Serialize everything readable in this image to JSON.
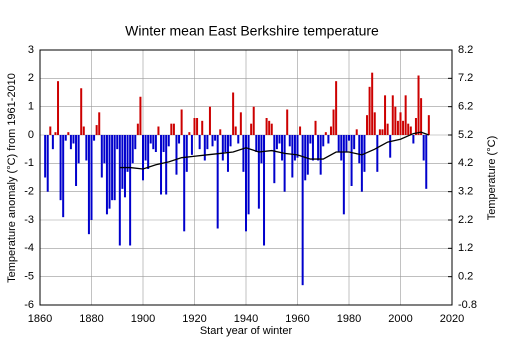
{
  "chart_data": {
    "type": "bar",
    "title": "Winter mean East Berkshire temperature",
    "xlabel": "Start year of winter",
    "ylabel": "Temperature anomaly (°C) from 1961-2010",
    "y2label": "Temperature (°C)",
    "x": [
      1862,
      1863,
      1864,
      1865,
      1866,
      1867,
      1868,
      1869,
      1870,
      1871,
      1872,
      1873,
      1874,
      1875,
      1876,
      1877,
      1878,
      1879,
      1880,
      1881,
      1882,
      1883,
      1884,
      1885,
      1886,
      1887,
      1888,
      1889,
      1890,
      1891,
      1892,
      1893,
      1894,
      1895,
      1896,
      1897,
      1898,
      1899,
      1900,
      1901,
      1902,
      1903,
      1904,
      1905,
      1906,
      1907,
      1908,
      1909,
      1910,
      1911,
      1912,
      1913,
      1914,
      1915,
      1916,
      1917,
      1918,
      1919,
      1920,
      1921,
      1922,
      1923,
      1924,
      1925,
      1926,
      1927,
      1928,
      1929,
      1930,
      1931,
      1932,
      1933,
      1934,
      1935,
      1936,
      1937,
      1938,
      1939,
      1940,
      1941,
      1942,
      1943,
      1944,
      1945,
      1946,
      1947,
      1948,
      1949,
      1950,
      1951,
      1952,
      1953,
      1954,
      1955,
      1956,
      1957,
      1958,
      1959,
      1960,
      1961,
      1962,
      1963,
      1964,
      1965,
      1966,
      1967,
      1968,
      1969,
      1970,
      1971,
      1972,
      1973,
      1974,
      1975,
      1976,
      1977,
      1978,
      1979,
      1980,
      1981,
      1982,
      1983,
      1984,
      1985,
      1986,
      1987,
      1988,
      1989,
      1990,
      1991,
      1992,
      1993,
      1994,
      1995,
      1996,
      1997,
      1998,
      1999,
      2000,
      2001,
      2002,
      2003,
      2004,
      2005,
      2006,
      2007,
      2008,
      2009,
      2010,
      2011
    ],
    "values": [
      -1.5,
      -2.0,
      0.3,
      -0.5,
      0.1,
      1.9,
      -2.3,
      -2.9,
      -0.2,
      0.1,
      -0.5,
      -0.3,
      -1.8,
      -1.0,
      1.65,
      0.3,
      -0.9,
      -3.5,
      -3.0,
      -0.2,
      0.35,
      0.8,
      -1.5,
      -1.0,
      -2.8,
      -2.6,
      -2.3,
      -2.3,
      -0.5,
      -3.9,
      -1.9,
      -2.2,
      -1.3,
      -3.9,
      -1.0,
      -0.5,
      0.4,
      1.35,
      -1.6,
      -0.9,
      -1.2,
      -0.3,
      -0.5,
      -0.6,
      0.3,
      -2.1,
      -0.6,
      -2.1,
      -0.4,
      0.4,
      0.4,
      -1.4,
      -0.3,
      0.9,
      -3.4,
      -1.3,
      0.1,
      -0.7,
      0.6,
      0.6,
      -0.5,
      0.5,
      -0.9,
      -0.5,
      1.0,
      -0.4,
      -0.2,
      -3.3,
      0.2,
      -0.9,
      -0.6,
      -1.3,
      -0.4,
      1.5,
      0.3,
      -0.3,
      0.8,
      -1.3,
      -3.4,
      -2.8,
      0.4,
      1.0,
      -0.6,
      -2.6,
      -1.0,
      -3.9,
      0.6,
      0.5,
      0.4,
      -1.7,
      -0.5,
      -0.3,
      -0.9,
      -2.0,
      0.9,
      -0.4,
      -1.5,
      -0.9,
      -0.8,
      0.3,
      -5.3,
      -1.6,
      -1.4,
      -0.3,
      -0.9,
      0.5,
      -0.9,
      -1.4,
      -0.4,
      0.1,
      -0.3,
      0.3,
      0.9,
      1.9,
      -0.6,
      -0.9,
      -2.8,
      -0.6,
      -0.2,
      -1.8,
      -0.5,
      0.2,
      -1.0,
      -2.0,
      -1.3,
      0.7,
      1.7,
      2.2,
      0.8,
      -1.3,
      0.2,
      0.2,
      1.4,
      0.4,
      -0.8,
      1.4,
      1.0,
      0.5,
      0.8,
      0.5,
      1.4,
      0.4,
      0.3,
      -0.3,
      0.6,
      2.1,
      1.3,
      -0.9,
      -1.9,
      0.7
    ],
    "positive_color": "#cc0000",
    "negative_color": "#0000cc",
    "line": {
      "color": "#000000",
      "x": [
        1891,
        1895,
        1900,
        1905,
        1910,
        1915,
        1920,
        1925,
        1930,
        1935,
        1940,
        1945,
        1950,
        1955,
        1960,
        1965,
        1970,
        1975,
        1980,
        1985,
        1990,
        1995,
        2000,
        2005,
        2008,
        2011
      ],
      "values": [
        -1.15,
        -1.15,
        -1.2,
        -1.05,
        -0.95,
        -0.8,
        -0.75,
        -0.7,
        -0.65,
        -0.6,
        -0.45,
        -0.6,
        -0.55,
        -0.65,
        -0.7,
        -0.85,
        -0.85,
        -0.6,
        -0.6,
        -0.7,
        -0.5,
        -0.25,
        -0.15,
        0.05,
        0.1,
        0.0
      ]
    },
    "xlim": [
      1860,
      2020
    ],
    "xticks": [
      1860,
      1880,
      1900,
      1920,
      1940,
      1960,
      1980,
      2000,
      2020
    ],
    "ylim": [
      -6,
      3
    ],
    "yticks": [
      -6,
      -5,
      -4,
      -3,
      -2,
      -1,
      0,
      1,
      2,
      3
    ],
    "y2lim": [
      -0.8,
      8.2
    ],
    "y2ticks": [
      -0.8,
      0.2,
      1.2,
      2.2,
      3.2,
      4.2,
      5.2,
      6.2,
      7.2,
      8.2
    ],
    "grid": true
  }
}
